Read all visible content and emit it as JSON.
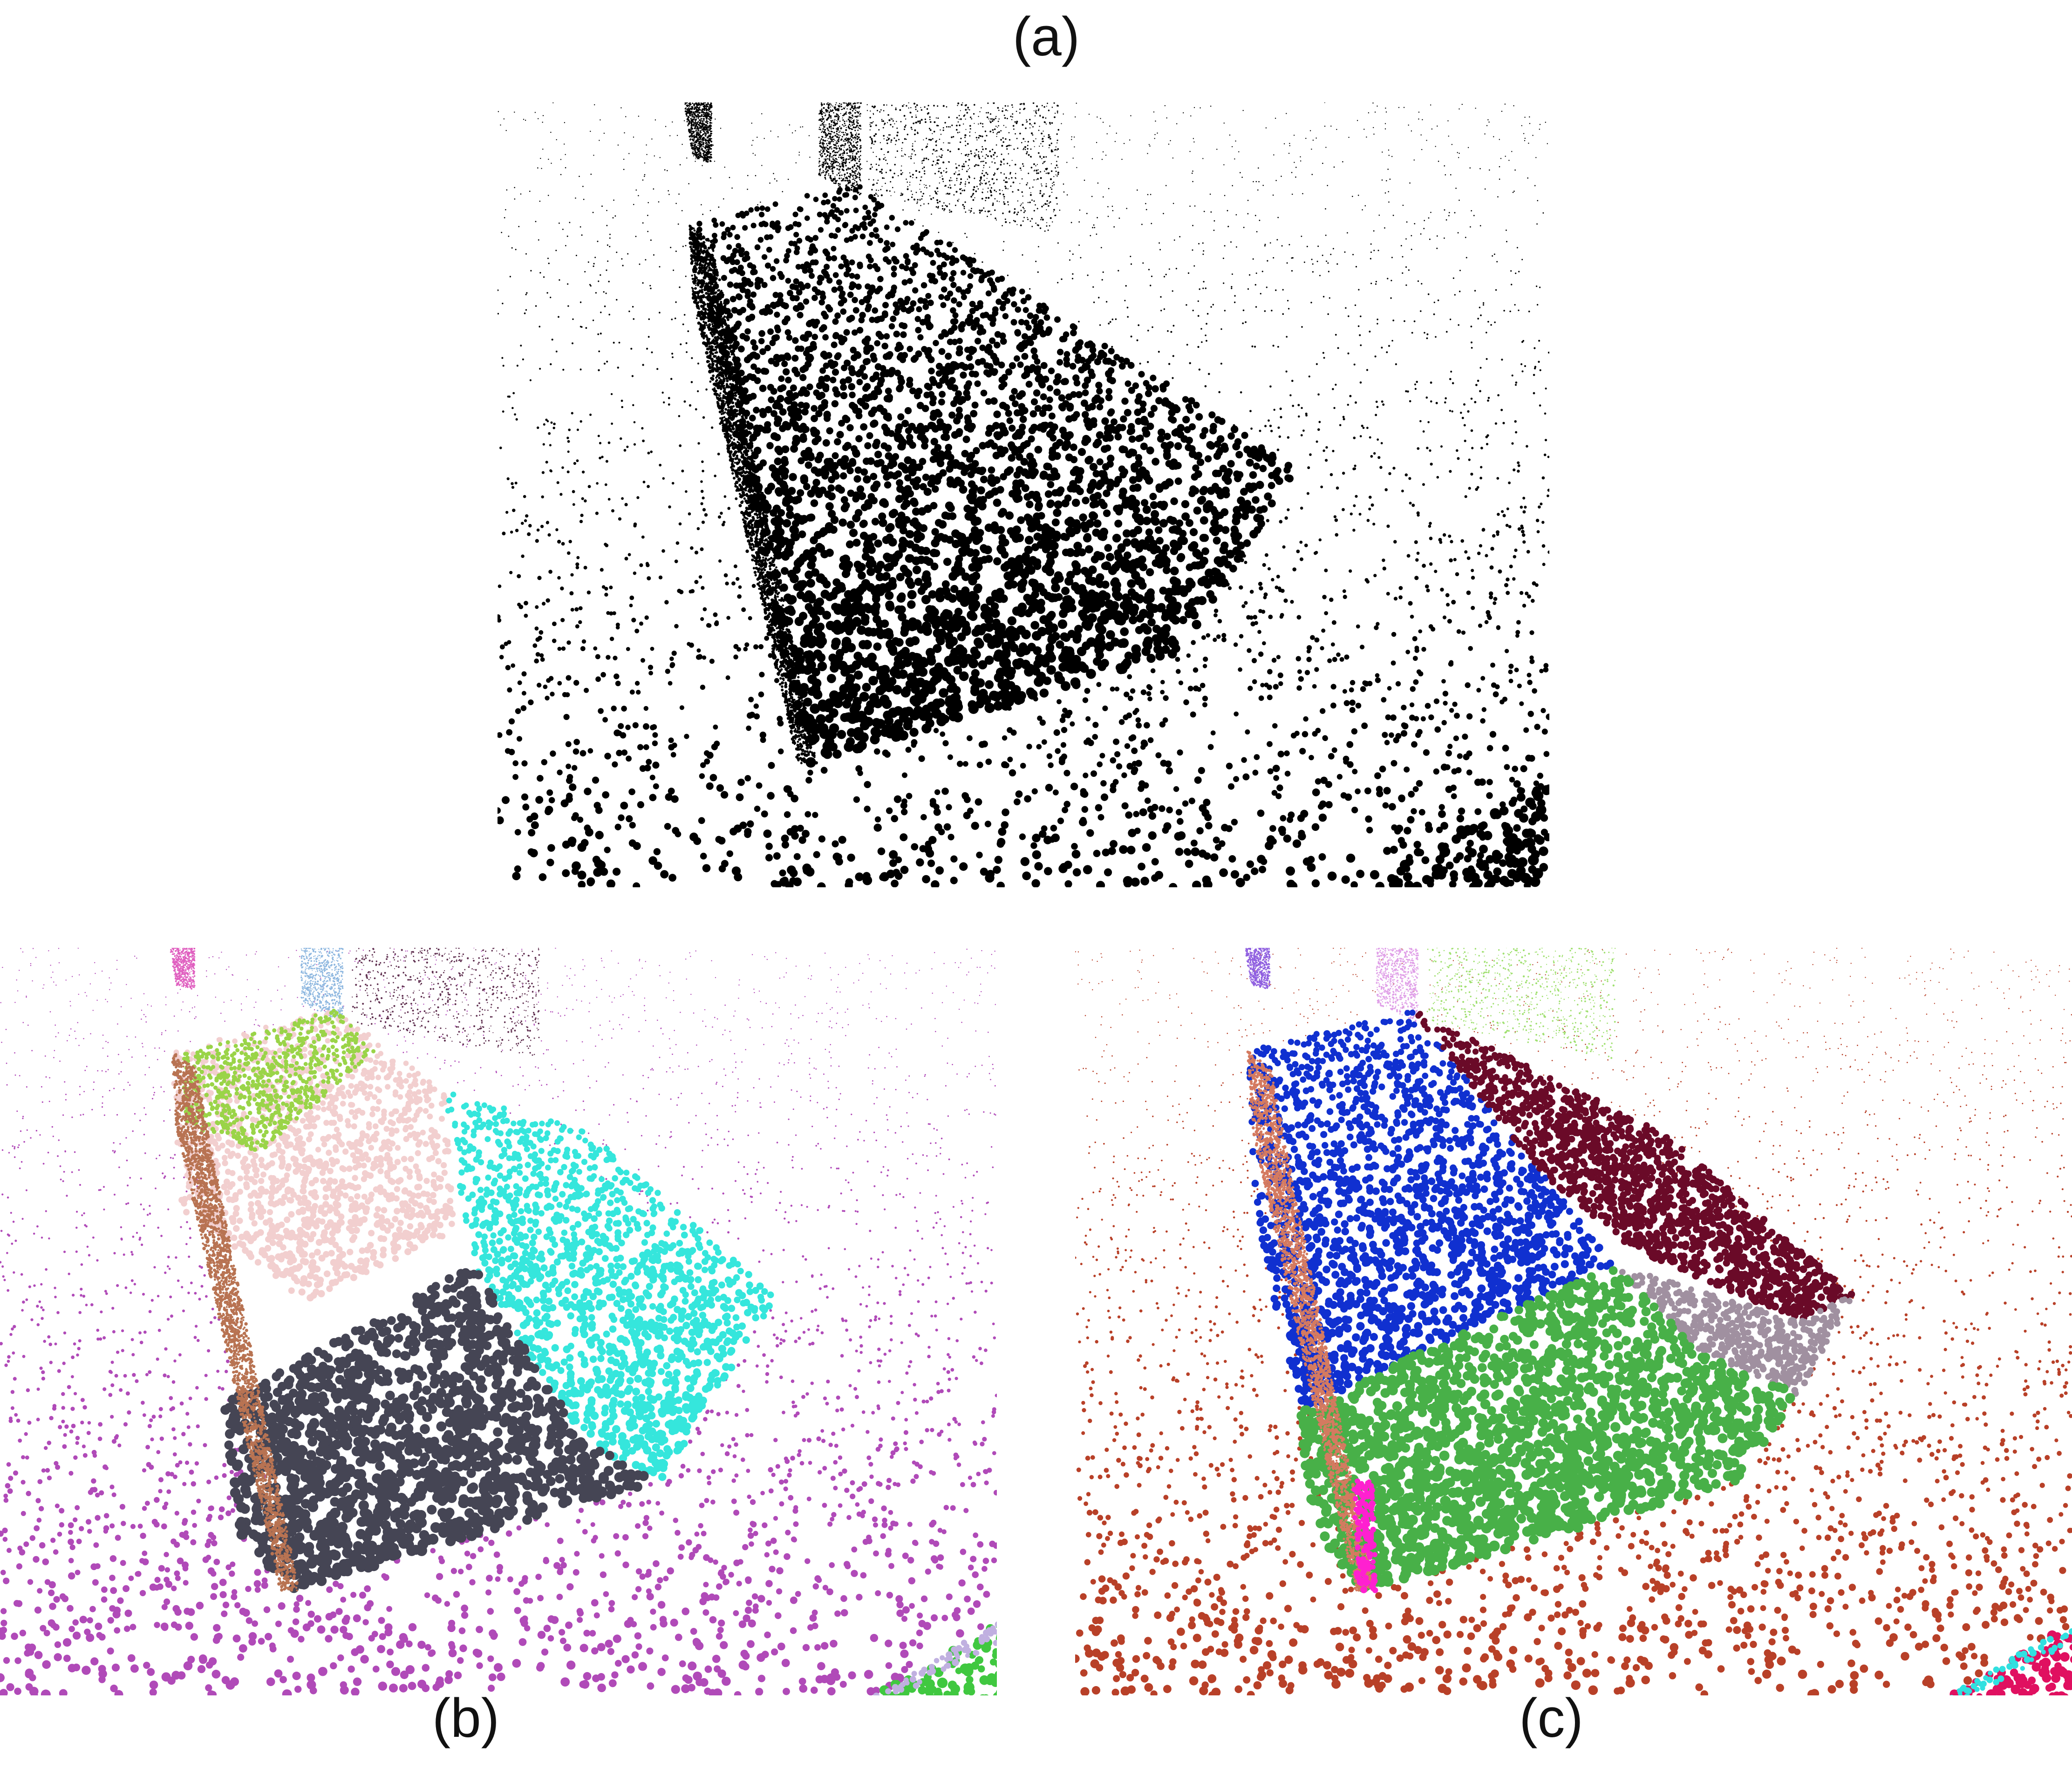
{
  "figure": {
    "panels": [
      {
        "caption": "(a)",
        "kind": "input-point-cloud",
        "colors": {
          "floor": "#000000",
          "box": "#000000",
          "side": "#000000",
          "wall": "#000000"
        }
      },
      {
        "caption": "(b)",
        "kind": "segmentation",
        "colors": {
          "floor": "#b04ab8",
          "side": "#b87352",
          "box_top_left": "#f2cfcf",
          "box_top_green": "#9ad448",
          "box_top_right": "#35e6dc",
          "box_front_left": "#f2cfcf",
          "box_front_dark": "#454554",
          "wall_left": "#e060c0",
          "wall_mid": "#8fb8e0",
          "wall_right": "#603050",
          "wall_far": "#a070c0",
          "corner_object": "#40c840",
          "corner_object_edge": "#c0b0e0"
        }
      },
      {
        "caption": "(c)",
        "kind": "segmentation",
        "colors": {
          "floor": "#b84028",
          "side": "#d47a60",
          "side_edge": "#ff20d0",
          "box_top_left": "#1030d0",
          "box_top_right": "#6a0a28",
          "box_front_left": "#1030d0",
          "box_front_green": "#48b048",
          "box_edge_gray": "#a090a0",
          "wall_left": "#9060e0",
          "wall_mid": "#e0a0e8",
          "wall_right": "#a0e070",
          "corner_object": "#e01060",
          "corner_object_edge": "#30e0e0"
        }
      }
    ]
  }
}
